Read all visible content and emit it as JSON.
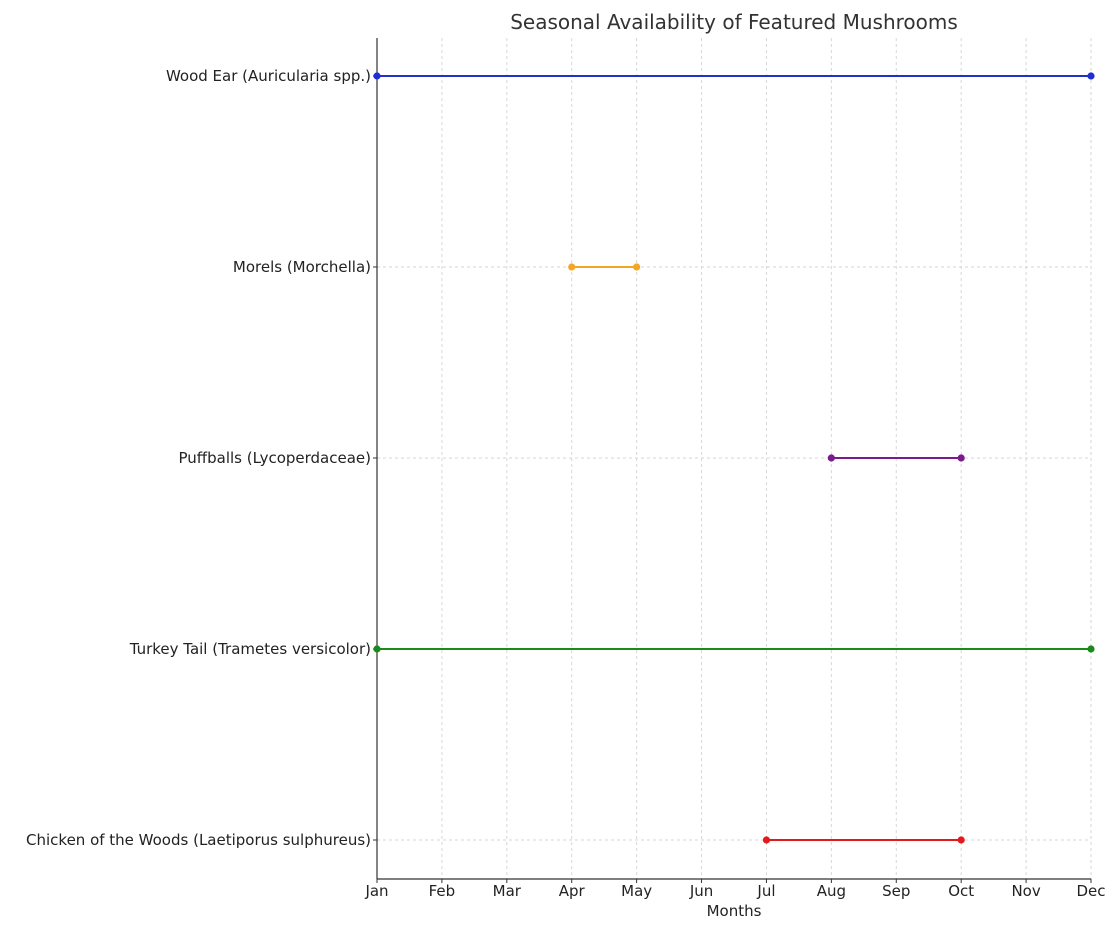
{
  "chart_data": {
    "type": "timeline",
    "title": "Seasonal Availability of Featured Mushrooms",
    "xlabel": "Months",
    "ylabel": "",
    "x_ticks": [
      "Jan",
      "Feb",
      "Mar",
      "Apr",
      "May",
      "Jun",
      "Jul",
      "Aug",
      "Sep",
      "Oct",
      "Nov",
      "Dec"
    ],
    "xlim": [
      "Jan",
      "Dec"
    ],
    "grid": true,
    "series": [
      {
        "name": "Chicken of the Woods (Laetiporus sulphureus)",
        "start": "Jul",
        "end": "Oct",
        "color": "#e31a1c"
      },
      {
        "name": "Turkey Tail (Trametes versicolor)",
        "start": "Jan",
        "end": "Dec",
        "color": "#1a8a1a"
      },
      {
        "name": "Puffballs (Lycoperdaceae)",
        "start": "Aug",
        "end": "Oct",
        "color": "#7b1a8c"
      },
      {
        "name": "Morels (Morchella)",
        "start": "Apr",
        "end": "May",
        "color": "#f5a623"
      },
      {
        "name": "Wood Ear (Auricularia spp.)",
        "start": "Jan",
        "end": "Dec",
        "color": "#1f2fd1"
      }
    ]
  }
}
